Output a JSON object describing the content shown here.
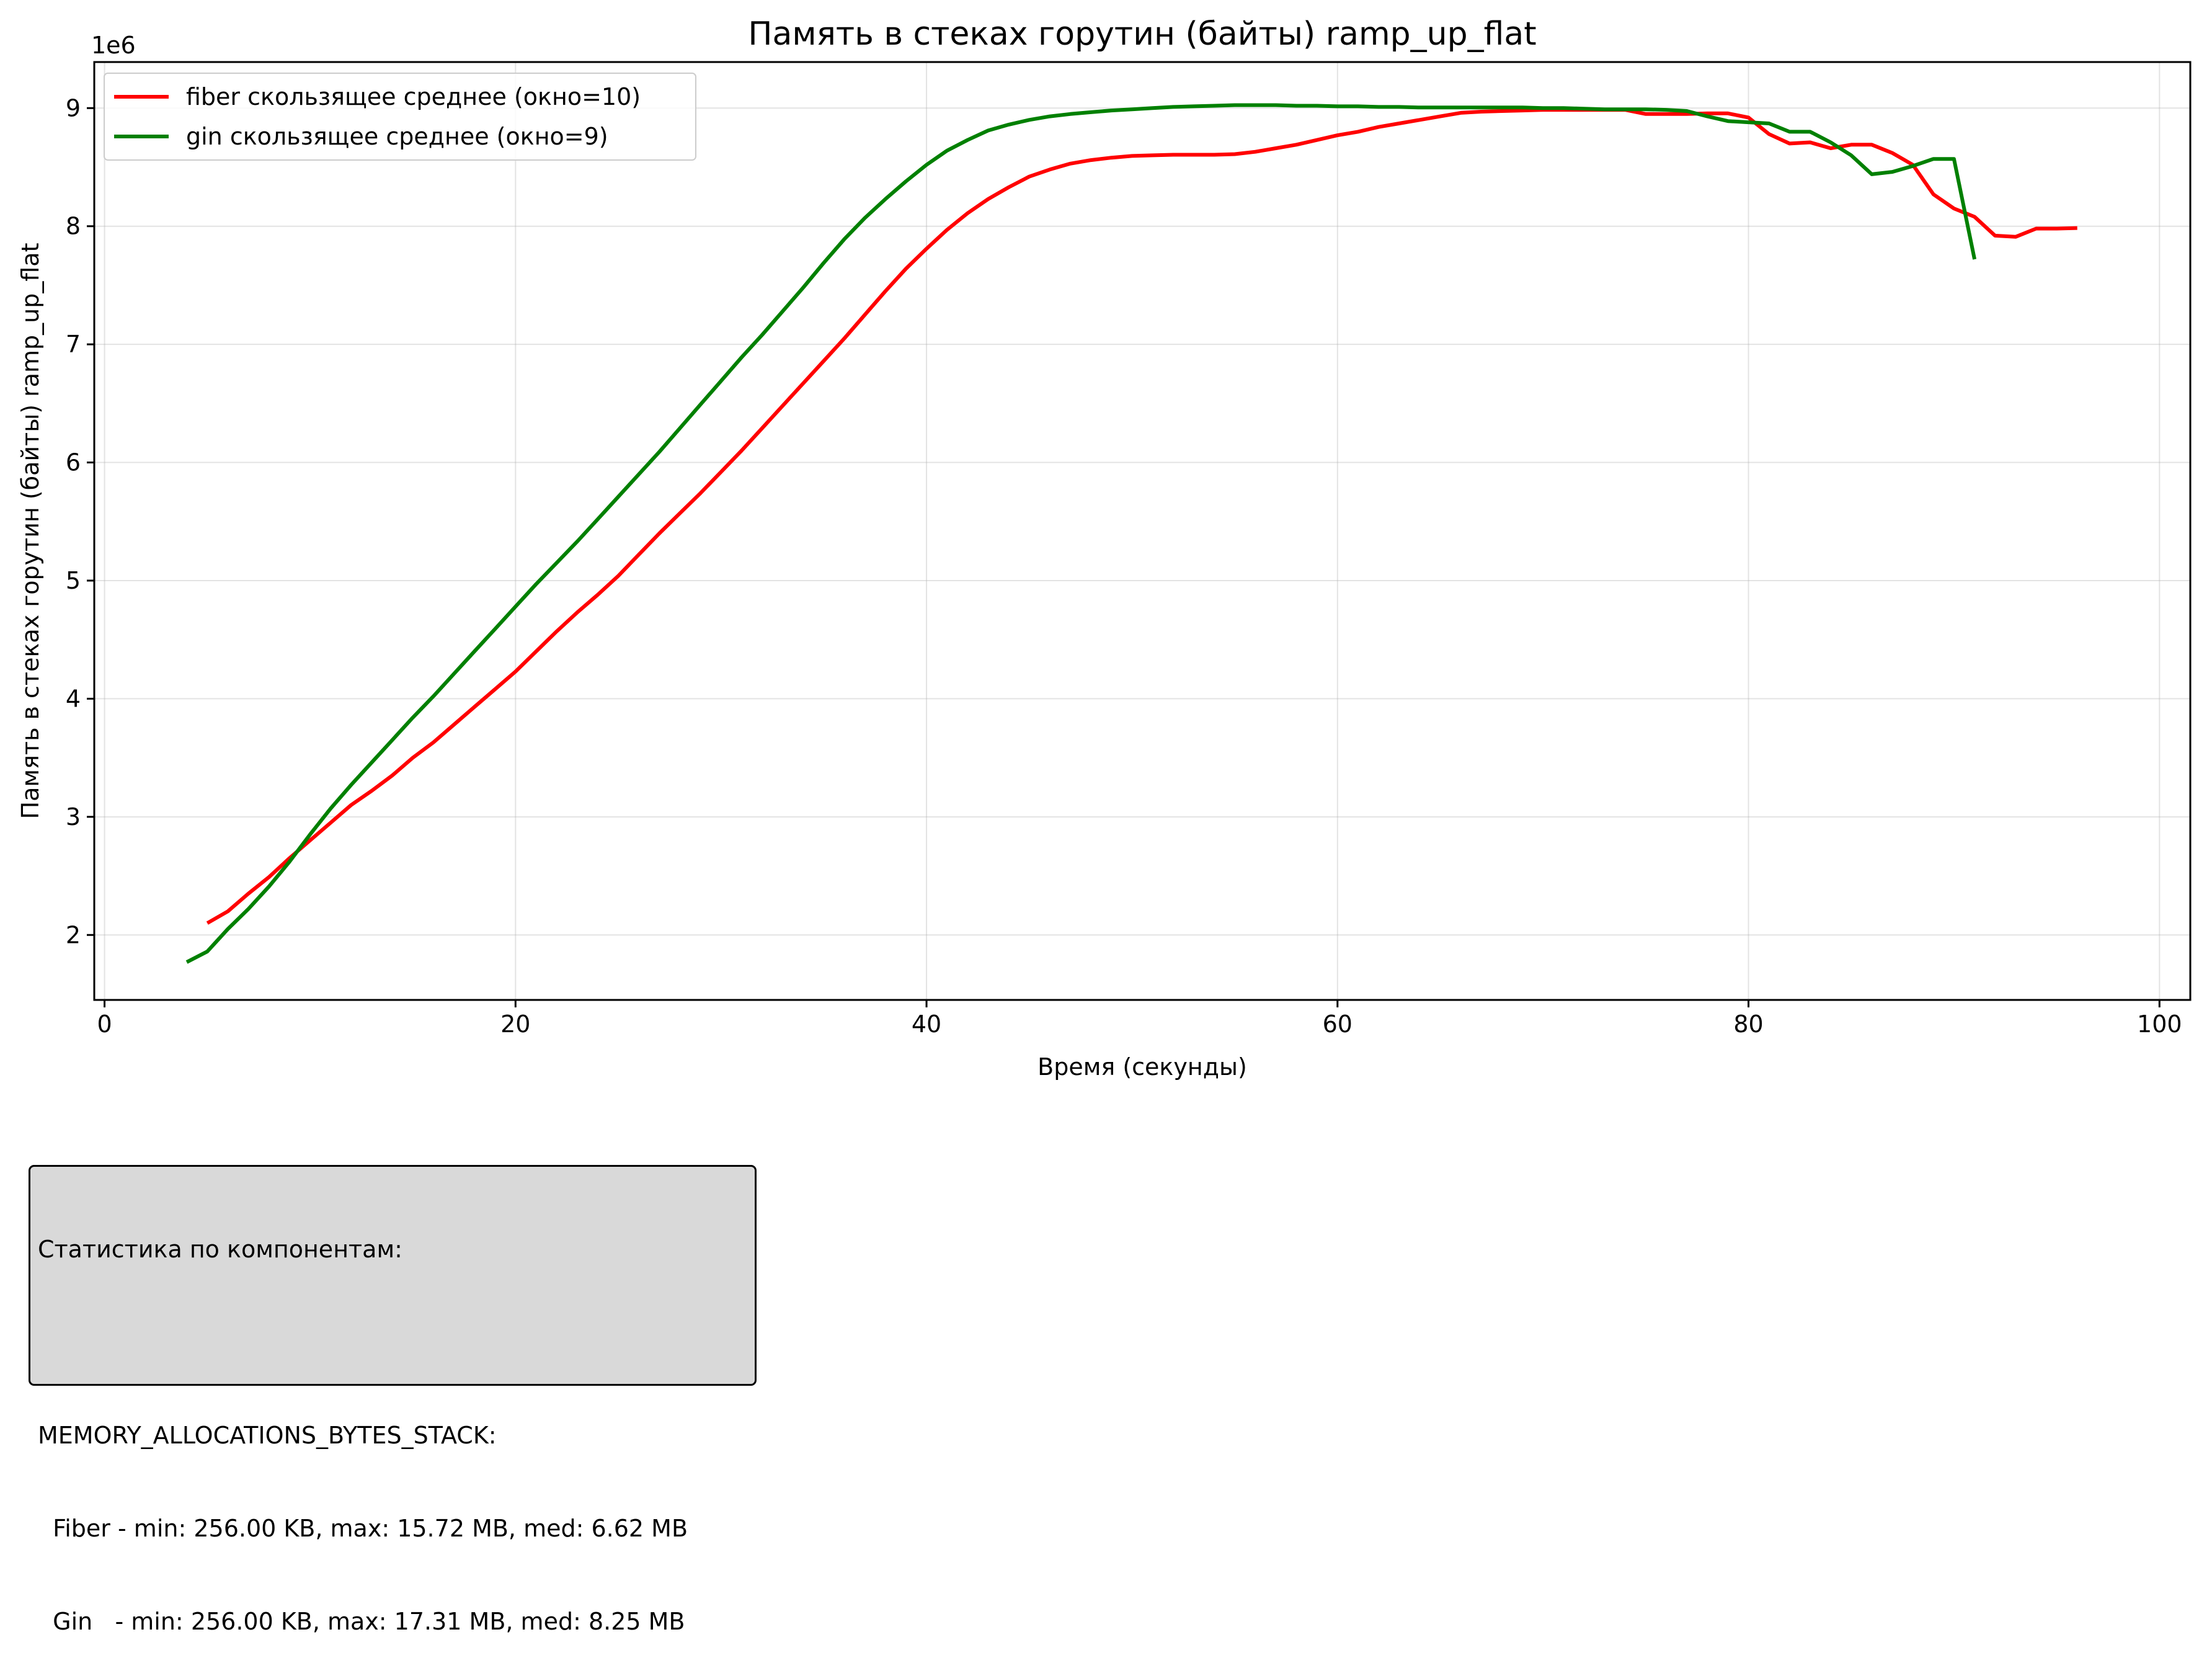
{
  "chart_data": {
    "type": "line",
    "title": "Память в стеках горутин (байты) ramp_up_flat",
    "xlabel": "Время (секунды)",
    "ylabel": "Память в стеках горутин (байты) ramp_up_flat",
    "y_offset_label": "1e6",
    "xlim": [
      -0.5,
      101.5
    ],
    "ylim": [
      1.45,
      9.39
    ],
    "xticks": [
      0,
      20,
      40,
      60,
      80,
      100
    ],
    "yticks": [
      2,
      3,
      4,
      5,
      6,
      7,
      8,
      9
    ],
    "grid": true,
    "legend_position": "top-left",
    "series": [
      {
        "name": "fiber скользящее среднее (окно=10)",
        "color": "#ff0000",
        "x": [
          5,
          6,
          7,
          8,
          9,
          10,
          11,
          12,
          13,
          14,
          15,
          16,
          17,
          18,
          19,
          20,
          21,
          22,
          23,
          24,
          25,
          26,
          27,
          28,
          29,
          30,
          31,
          32,
          33,
          34,
          35,
          36,
          37,
          38,
          39,
          40,
          41,
          42,
          43,
          44,
          45,
          46,
          47,
          48,
          49,
          50,
          51,
          52,
          53,
          54,
          55,
          56,
          57,
          58,
          59,
          60,
          61,
          62,
          63,
          64,
          65,
          66,
          67,
          68,
          69,
          70,
          71,
          72,
          73,
          74,
          75,
          76,
          77,
          78,
          79,
          80,
          81,
          82,
          83,
          84,
          85,
          86,
          87,
          88,
          89,
          90,
          91,
          92,
          93,
          94,
          95,
          96
        ],
        "y": [
          2.1,
          2.2,
          2.35,
          2.49,
          2.65,
          2.8,
          2.95,
          3.1,
          3.22,
          3.35,
          3.5,
          3.63,
          3.78,
          3.93,
          4.08,
          4.23,
          4.4,
          4.57,
          4.73,
          4.88,
          5.04,
          5.22,
          5.4,
          5.57,
          5.74,
          5.92,
          6.1,
          6.29,
          6.48,
          6.67,
          6.86,
          7.05,
          7.25,
          7.45,
          7.64,
          7.81,
          7.97,
          8.11,
          8.23,
          8.33,
          8.42,
          8.48,
          8.53,
          8.56,
          8.58,
          8.595,
          8.6,
          8.605,
          8.605,
          8.605,
          8.61,
          8.63,
          8.66,
          8.69,
          8.73,
          8.77,
          8.8,
          8.84,
          8.87,
          8.9,
          8.93,
          8.96,
          8.97,
          8.975,
          8.98,
          8.985,
          8.985,
          8.985,
          8.985,
          8.985,
          8.95,
          8.95,
          8.95,
          8.955,
          8.955,
          8.92,
          8.78,
          8.7,
          8.71,
          8.66,
          8.69,
          8.69,
          8.62,
          8.52,
          8.27,
          8.15,
          8.08,
          7.92,
          7.91,
          7.98,
          7.98,
          7.985
        ]
      },
      {
        "name": "gin скользящее среднее (окно=9)",
        "color": "#008000",
        "x": [
          4,
          5,
          6,
          7,
          8,
          9,
          10,
          11,
          12,
          13,
          14,
          15,
          16,
          17,
          18,
          19,
          20,
          21,
          22,
          23,
          24,
          25,
          26,
          27,
          28,
          29,
          30,
          31,
          32,
          33,
          34,
          35,
          36,
          37,
          38,
          39,
          40,
          41,
          42,
          43,
          44,
          45,
          46,
          47,
          48,
          49,
          50,
          51,
          52,
          53,
          54,
          55,
          56,
          57,
          58,
          59,
          60,
          61,
          62,
          63,
          64,
          65,
          66,
          67,
          68,
          69,
          70,
          71,
          72,
          73,
          74,
          75,
          76,
          77,
          78,
          79,
          80,
          81,
          82,
          83,
          84,
          85,
          86,
          87,
          88,
          89,
          90,
          91
        ],
        "y": [
          1.77,
          1.86,
          2.05,
          2.22,
          2.41,
          2.62,
          2.85,
          3.07,
          3.27,
          3.46,
          3.65,
          3.84,
          4.02,
          4.21,
          4.4,
          4.59,
          4.78,
          4.97,
          5.15,
          5.33,
          5.52,
          5.71,
          5.9,
          6.09,
          6.29,
          6.49,
          6.69,
          6.89,
          7.08,
          7.28,
          7.48,
          7.69,
          7.89,
          8.07,
          8.23,
          8.38,
          8.52,
          8.64,
          8.73,
          8.81,
          8.86,
          8.9,
          8.93,
          8.95,
          8.965,
          8.98,
          8.99,
          9.0,
          9.01,
          9.015,
          9.02,
          9.025,
          9.025,
          9.025,
          9.02,
          9.02,
          9.015,
          9.015,
          9.01,
          9.01,
          9.005,
          9.005,
          9.005,
          9.005,
          9.005,
          9.005,
          9.0,
          9.0,
          8.995,
          8.99,
          8.99,
          8.99,
          8.985,
          8.975,
          8.93,
          8.89,
          8.88,
          8.87,
          8.8,
          8.8,
          8.71,
          8.6,
          8.44,
          8.46,
          8.51,
          8.57,
          8.57,
          7.72
        ]
      }
    ]
  },
  "stats_box": {
    "heading": "Статистика по компонентам:",
    "section": "MEMORY_ALLOCATIONS_BYTES_STACK:",
    "lines": [
      "  Fiber - min: 256.00 KB, max: 15.72 MB, med: 6.62 MB",
      "  Gin   - min: 256.00 KB, max: 17.31 MB, med: 8.25 MB"
    ]
  }
}
